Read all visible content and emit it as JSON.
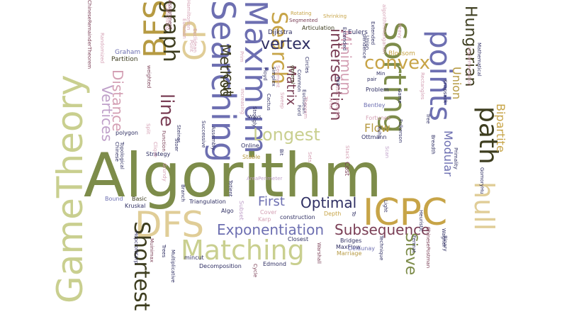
{
  "colors": {
    "olive": "#7d8c4a",
    "khaki": "#c9cf8f",
    "sand": "#e0cd97",
    "indigo": "#6d6fb1",
    "plum": "#7a3e55",
    "lilac": "#bfa0c9",
    "navy": "#2f2f63",
    "dark": "#3d3d1f",
    "gold": "#b69a42",
    "pink": "#d4a0b4",
    "mustard": "#c7a447"
  },
  "words": [
    {
      "text": "Algorithm"
    },
    {
      "text": "GameTheory"
    },
    {
      "text": "Matching"
    },
    {
      "text": "DFS"
    },
    {
      "text": "ICPC"
    },
    {
      "text": "Shortest"
    },
    {
      "text": "BFS"
    },
    {
      "text": "CP"
    },
    {
      "text": "graph"
    },
    {
      "text": "Searching"
    },
    {
      "text": "Maximum"
    },
    {
      "text": "Search"
    },
    {
      "text": "Sorting"
    },
    {
      "text": "points"
    },
    {
      "text": "path"
    },
    {
      "text": "hull"
    },
    {
      "text": "convex"
    },
    {
      "text": "Hungarian"
    },
    {
      "text": "Longest"
    },
    {
      "text": "Exponentiation"
    },
    {
      "text": "Subsequence"
    },
    {
      "text": "Optimal"
    },
    {
      "text": "First"
    },
    {
      "text": "Sieve"
    },
    {
      "text": "vertex"
    },
    {
      "text": "intersection"
    },
    {
      "text": "Minimum"
    },
    {
      "text": "Matrix"
    },
    {
      "text": "cut"
    },
    {
      "text": "Method"
    },
    {
      "text": "line"
    },
    {
      "text": "Distance"
    },
    {
      "text": "Vertices"
    },
    {
      "text": "Flow"
    },
    {
      "text": "Modular"
    },
    {
      "text": "Bipartite"
    },
    {
      "text": "Union"
    },
    {
      "text": "Cost"
    },
    {
      "text": "Dijkstra"
    },
    {
      "text": "Articulation"
    },
    {
      "text": "Eulers"
    },
    {
      "text": "Graham"
    },
    {
      "text": "Partition"
    },
    {
      "text": "Blossom"
    },
    {
      "text": "Problem"
    },
    {
      "text": "Bentley"
    },
    {
      "text": "Ottmann"
    },
    {
      "text": "Fortunes"
    },
    {
      "text": "polygon"
    },
    {
      "text": "Kruskal"
    },
    {
      "text": "Bound"
    },
    {
      "text": "Basic"
    },
    {
      "text": "Triangulation"
    },
    {
      "text": "mincut"
    },
    {
      "text": "Strategy"
    },
    {
      "text": "Online"
    },
    {
      "text": "Stable"
    },
    {
      "text": "AreaPerimeter"
    },
    {
      "text": "Subset"
    },
    {
      "text": "Algo"
    },
    {
      "text": "Cover"
    },
    {
      "text": "Karp"
    },
    {
      "text": "construction"
    },
    {
      "text": "Closest"
    },
    {
      "text": "Warshall"
    },
    {
      "text": "Decomposition"
    },
    {
      "text": "Edmond"
    },
    {
      "text": "Cycle"
    },
    {
      "text": "Depth"
    },
    {
      "text": "Bridges"
    },
    {
      "text": "MaxFlow"
    },
    {
      "text": "Delaunay"
    },
    {
      "text": "Marriage"
    },
    {
      "text": "Technique"
    },
    {
      "text": "Fermat"
    },
    {
      "text": "Binary"
    },
    {
      "text": "ChinesePostman"
    },
    {
      "text": "Wagner"
    },
    {
      "text": "GomoryHu"
    },
    {
      "text": "Primality"
    },
    {
      "text": "Mathematical"
    },
    {
      "text": "Knapsack"
    },
    {
      "text": "Rectangles"
    },
    {
      "text": "Implementation"
    },
    {
      "text": "Game"
    },
    {
      "text": "Light"
    },
    {
      "text": "Heavy"
    },
    {
      "text": "algorithmHungarian"
    },
    {
      "text": "ChineseRemainderTheorem"
    },
    {
      "text": "Randomized"
    },
    {
      "text": "weighted"
    },
    {
      "text": "Segmented"
    },
    {
      "text": "Rotating"
    },
    {
      "text": "Shrinking"
    },
    {
      "text": "general"
    },
    {
      "text": "Common"
    },
    {
      "text": "Euclidean"
    },
    {
      "text": "Fulkerson"
    },
    {
      "text": "Kuhn"
    },
    {
      "text": "Multiplicative"
    },
    {
      "text": "HopcroftKarp"
    },
    {
      "text": "Trees"
    },
    {
      "text": "Topological"
    },
    {
      "text": "Ford"
    },
    {
      "text": "Branch"
    },
    {
      "text": "Assembly"
    },
    {
      "text": "Successive"
    },
    {
      "text": "Increasing"
    },
    {
      "text": "Ways"
    },
    {
      "text": "Floyd"
    },
    {
      "text": "Prim"
    },
    {
      "text": "Tree"
    },
    {
      "text": "Breadth"
    },
    {
      "text": "Scan"
    },
    {
      "text": "Inverse"
    },
    {
      "text": "Area"
    },
    {
      "text": "Min"
    },
    {
      "text": "pair"
    },
    {
      "text": "Sort"
    },
    {
      "text": "Steiner"
    },
    {
      "text": "Function"
    },
    {
      "text": "Circles"
    },
    {
      "text": "Theorem"
    },
    {
      "text": "Cancelling"
    },
    {
      "text": "Assignment"
    },
    {
      "text": "Point"
    },
    {
      "text": "Euclidean"
    },
    {
      "text": "Extended"
    },
    {
      "text": "Totient"
    },
    {
      "text": "Eulerian"
    },
    {
      "text": "Clique"
    },
    {
      "text": "Split"
    },
    {
      "text": "Hamiltonian"
    },
    {
      "text": "Simplex"
    },
    {
      "text": "Cactus"
    },
    {
      "text": "Stoer"
    },
    {
      "text": "Sweep"
    },
    {
      "text": "Union"
    },
    {
      "text": "Grundy"
    },
    {
      "text": "Exit"
    },
    {
      "text": "Segment"
    },
    {
      "text": "Strongly"
    },
    {
      "text": "Extended"
    },
    {
      "text": "pendence"
    },
    {
      "text": "Chinese"
    },
    {
      "text": "Muinimax"
    },
    {
      "text": "Sets"
    },
    {
      "text": "Bit"
    },
    {
      "text": "Stack"
    },
    {
      "text": "Heuristic"
    },
    {
      "text": "To"
    }
  ]
}
